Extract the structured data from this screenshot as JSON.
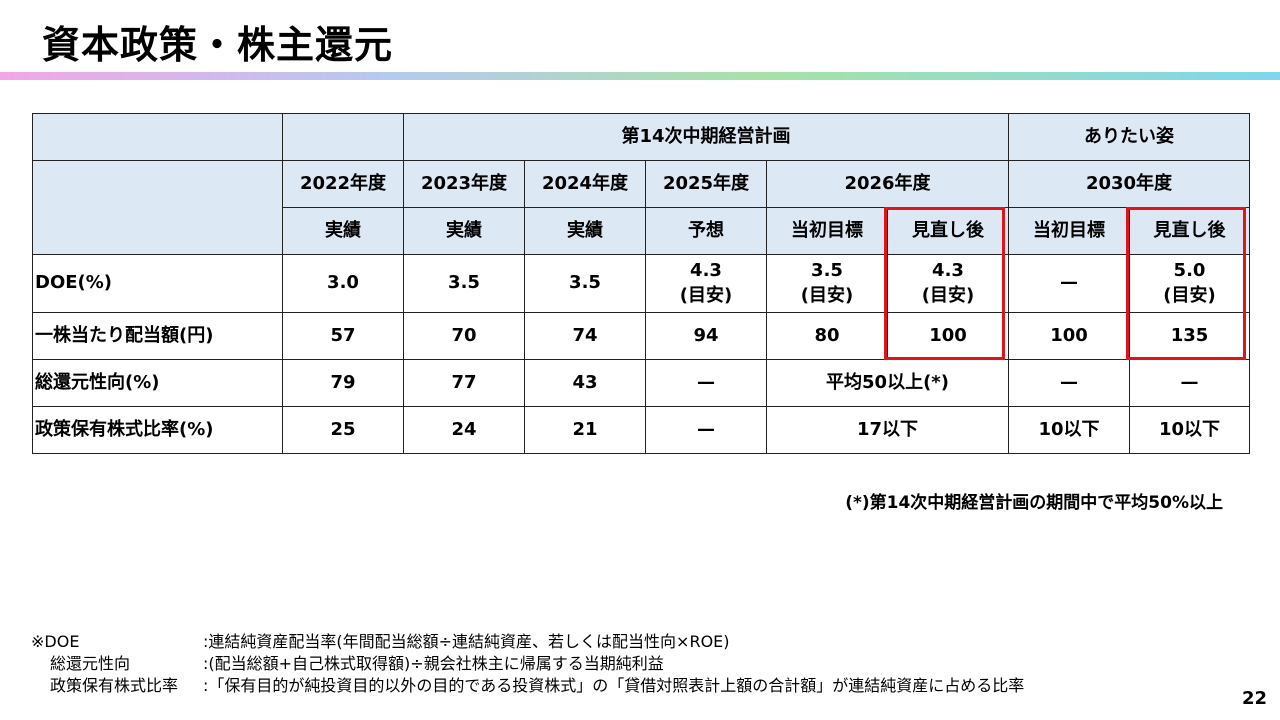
{
  "title": "資本政策・株主還元",
  "table": {
    "plan_header": "第14次中期経営計画",
    "ideal_header": "ありたい姿",
    "years": [
      "2022年度",
      "2023年度",
      "2024年度",
      "2025年度",
      "2026年度",
      "2030年度"
    ],
    "sub_headers": [
      "実績",
      "実績",
      "実績",
      "予想",
      "当初目標",
      "見直し後",
      "当初目標",
      "見直し後"
    ],
    "rows": [
      {
        "label": "DOE(%)",
        "cells": [
          [
            "3.0"
          ],
          [
            "3.5"
          ],
          [
            "3.5"
          ],
          [
            "4.3",
            "(目安)"
          ],
          [
            "3.5",
            "(目安)"
          ],
          [
            "4.3",
            "(目安)"
          ],
          [
            "—"
          ],
          [
            "5.0",
            "(目安)"
          ]
        ]
      },
      {
        "label": "一株当たり配当額(円)",
        "cells": [
          "57",
          "70",
          "74",
          "94",
          "80",
          "100",
          "100",
          "135"
        ]
      },
      {
        "label": "総還元性向(%)",
        "cells": [
          "79",
          "77",
          "43",
          "—",
          "平均50以上(*)",
          "—",
          "—"
        ]
      },
      {
        "label": "政策保有株式比率(%)",
        "cells": [
          "25",
          "24",
          "21",
          "—",
          "17以下",
          "10以下",
          "10以下"
        ]
      }
    ]
  },
  "note": "(*)第14次中期経営計画の期間中で平均50%以上",
  "footnotes": [
    {
      "term": "※DOE",
      "desc": ":連結純資産配当率(年間配当総額÷連結純資産、若しくは配当性向×ROE)"
    },
    {
      "term": "総還元性向",
      "desc": ":(配当総額+自己株式取得額)÷親会社株主に帰属する当期純利益"
    },
    {
      "term": "政策保有株式比率",
      "desc": ":「保有目的が純投資目的以外の目的である投資株式」の「貸借対照表計上額の合計額」が連結純資産に占める比率"
    }
  ],
  "page_number": "22"
}
